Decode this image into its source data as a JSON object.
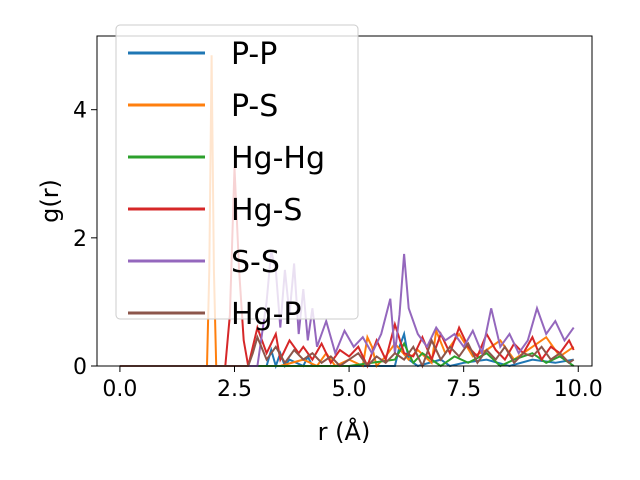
{
  "chart_data": {
    "type": "line",
    "title": "",
    "xlabel": "r (Å)",
    "ylabel": "g(r)",
    "xlim": [
      -0.5,
      10.3
    ],
    "ylim": [
      0,
      5.15
    ],
    "xticks": [
      "0.0",
      "2.5",
      "5.0",
      "7.5",
      "10.0"
    ],
    "yticks": [
      "0",
      "2",
      "4"
    ],
    "xtick_values": [
      0,
      2.5,
      5,
      7.5,
      10
    ],
    "ytick_values": [
      0,
      2,
      4
    ],
    "legend_position": "upper-left",
    "grid": false,
    "series": [
      {
        "name": "P-P",
        "color": "#1f77b4",
        "x": [
          0.0,
          3.2,
          3.3,
          3.4,
          3.5,
          3.6,
          3.7,
          4.0,
          4.1,
          4.2,
          4.5,
          5.0,
          5.5,
          6.0,
          6.1,
          6.2,
          6.3,
          6.5,
          7.0,
          7.2,
          7.5,
          8.0,
          8.5,
          9.0,
          9.5,
          9.9
        ],
        "y": [
          0.0,
          0.0,
          0.25,
          0.0,
          0.2,
          0.0,
          0.1,
          0.0,
          0.15,
          0.0,
          0.0,
          0.0,
          0.0,
          0.0,
          0.3,
          0.5,
          0.1,
          0.0,
          0.1,
          0.0,
          0.05,
          0.1,
          0.0,
          0.1,
          0.05,
          0.1
        ]
      },
      {
        "name": "P-S",
        "color": "#ff7f0e",
        "x": [
          0.0,
          1.9,
          1.95,
          2.0,
          2.05,
          2.1,
          2.2,
          2.5,
          3.0,
          3.5,
          4.0,
          4.3,
          4.5,
          4.7,
          5.0,
          5.3,
          5.4,
          5.5,
          5.6,
          5.8,
          6.0,
          6.3,
          6.5,
          6.8,
          6.9,
          7.1,
          7.4,
          7.7,
          8.0,
          8.3,
          8.6,
          9.0,
          9.3,
          9.6,
          9.9
        ],
        "y": [
          0.0,
          0.0,
          1.5,
          4.85,
          1.5,
          0.0,
          0.0,
          0.0,
          0.0,
          0.0,
          0.1,
          0.0,
          0.2,
          0.0,
          0.1,
          0.0,
          0.45,
          0.3,
          0.0,
          0.15,
          0.35,
          0.1,
          0.25,
          0.05,
          0.55,
          0.2,
          0.5,
          0.15,
          0.25,
          0.4,
          0.1,
          0.3,
          0.45,
          0.15,
          0.3
        ]
      },
      {
        "name": "Hg-Hg",
        "color": "#2ca02c",
        "x": [
          0.0,
          4.0,
          4.5,
          5.0,
          5.5,
          6.0,
          6.2,
          6.4,
          6.6,
          7.0,
          7.3,
          7.6,
          8.0,
          8.3,
          8.6,
          9.0,
          9.3,
          9.6,
          9.9
        ],
        "y": [
          0.0,
          0.0,
          0.0,
          0.0,
          0.05,
          0.1,
          0.35,
          0.05,
          0.2,
          0.0,
          0.15,
          0.05,
          0.2,
          0.0,
          0.1,
          0.2,
          0.05,
          0.15,
          0.0
        ]
      },
      {
        "name": "Hg-S",
        "color": "#d62728",
        "x": [
          0.0,
          2.3,
          2.4,
          2.5,
          2.6,
          2.7,
          2.8,
          2.9,
          3.0,
          3.2,
          3.4,
          3.5,
          3.7,
          3.9,
          4.0,
          4.2,
          4.4,
          4.6,
          4.8,
          5.0,
          5.2,
          5.4,
          5.6,
          5.8,
          6.0,
          6.2,
          6.4,
          6.6,
          6.8,
          7.0,
          7.2,
          7.4,
          7.6,
          7.8,
          8.0,
          8.2,
          8.4,
          8.6,
          8.8,
          9.0,
          9.2,
          9.4,
          9.6,
          9.8,
          9.9
        ],
        "y": [
          0.0,
          0.0,
          0.8,
          3.1,
          1.5,
          0.4,
          0.0,
          0.3,
          0.6,
          0.2,
          0.5,
          0.1,
          0.4,
          0.2,
          0.3,
          0.1,
          0.35,
          0.05,
          0.25,
          0.15,
          0.3,
          0.0,
          0.4,
          0.1,
          0.65,
          0.2,
          0.15,
          0.45,
          0.1,
          0.5,
          0.2,
          0.6,
          0.3,
          0.15,
          0.5,
          0.25,
          0.1,
          0.35,
          0.2,
          0.45,
          0.1,
          0.3,
          0.2,
          0.4,
          0.25
        ]
      },
      {
        "name": "S-S",
        "color": "#9467bd",
        "x": [
          0.0,
          3.0,
          3.1,
          3.2,
          3.3,
          3.4,
          3.5,
          3.6,
          3.7,
          3.8,
          3.9,
          4.0,
          4.1,
          4.2,
          4.3,
          4.5,
          4.7,
          4.9,
          5.1,
          5.3,
          5.5,
          5.7,
          5.9,
          6.0,
          6.1,
          6.2,
          6.3,
          6.5,
          6.7,
          6.9,
          7.1,
          7.3,
          7.5,
          7.7,
          7.9,
          8.1,
          8.3,
          8.5,
          8.7,
          8.9,
          9.1,
          9.3,
          9.5,
          9.7,
          9.9
        ],
        "y": [
          0.0,
          0.0,
          0.5,
          1.0,
          1.8,
          1.5,
          0.6,
          1.5,
          0.8,
          1.6,
          0.5,
          1.2,
          0.4,
          0.9,
          0.3,
          0.7,
          0.2,
          0.55,
          0.3,
          0.45,
          0.2,
          0.5,
          1.05,
          0.2,
          0.8,
          1.75,
          0.9,
          0.5,
          0.3,
          0.6,
          0.4,
          0.5,
          0.3,
          0.55,
          0.2,
          0.9,
          0.3,
          0.5,
          0.2,
          0.4,
          0.9,
          0.5,
          0.7,
          0.4,
          0.6
        ]
      },
      {
        "name": "Hg-P",
        "color": "#8c564b",
        "x": [
          0.0,
          2.8,
          2.9,
          3.0,
          3.2,
          3.4,
          3.6,
          3.8,
          4.0,
          4.2,
          4.4,
          4.6,
          4.8,
          5.0,
          5.2,
          5.4,
          5.6,
          5.8,
          6.0,
          6.2,
          6.4,
          6.6,
          6.8,
          7.0,
          7.2,
          7.4,
          7.6,
          7.8,
          8.0,
          8.2,
          8.4,
          8.6,
          8.8,
          9.0,
          9.2,
          9.4,
          9.6,
          9.8,
          9.9
        ],
        "y": [
          0.0,
          0.0,
          0.2,
          0.45,
          0.1,
          0.3,
          0.05,
          0.25,
          0.1,
          0.2,
          0.05,
          0.15,
          0.0,
          0.1,
          0.2,
          0.0,
          0.15,
          0.05,
          0.2,
          0.1,
          0.3,
          0.0,
          0.4,
          0.1,
          0.3,
          0.15,
          0.35,
          0.05,
          0.25,
          0.1,
          0.3,
          0.05,
          0.2,
          0.15,
          0.3,
          0.1,
          0.2,
          0.05,
          0.1
        ]
      }
    ]
  }
}
